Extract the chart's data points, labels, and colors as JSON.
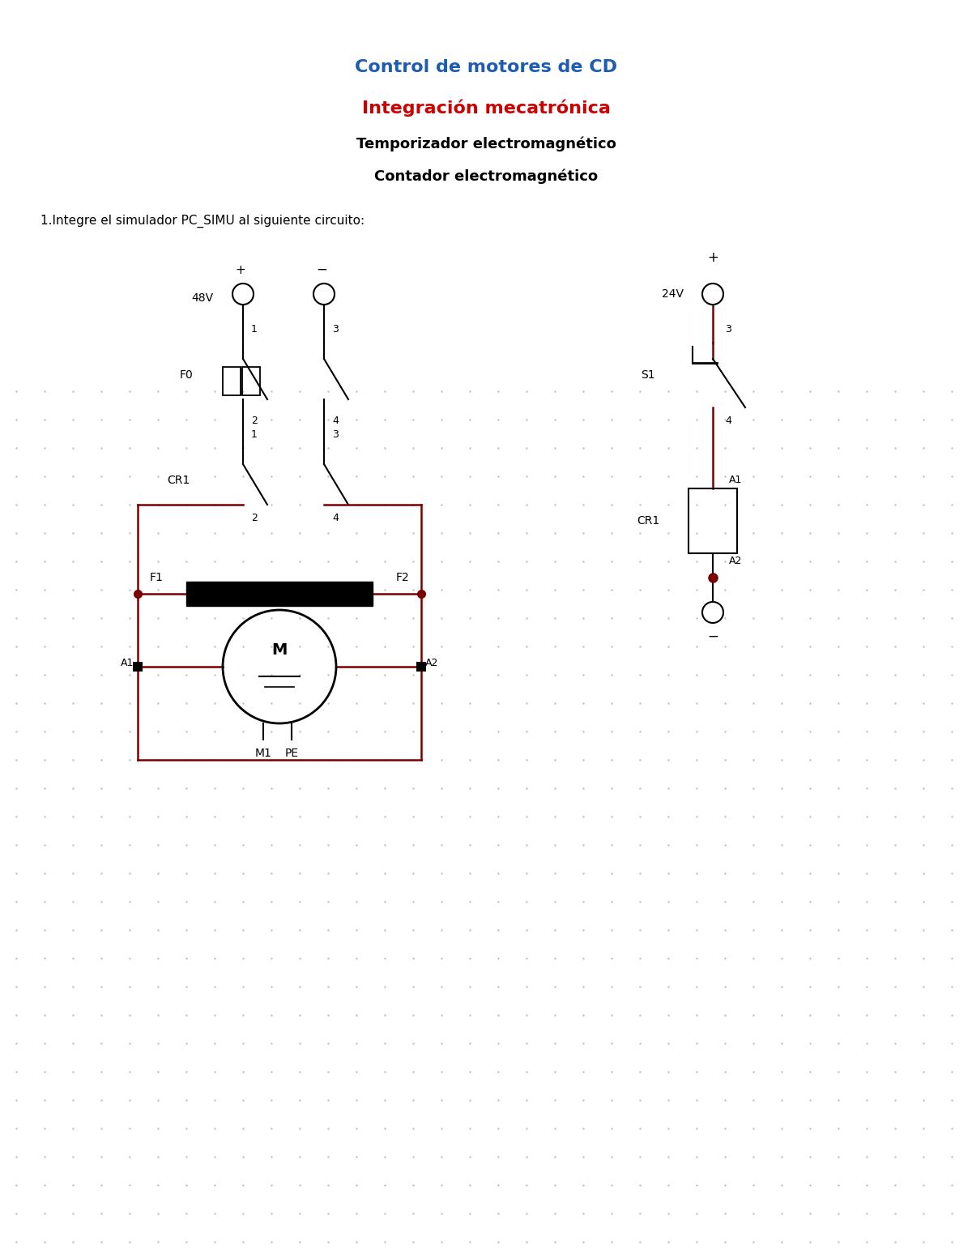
{
  "title1": "Control de motores de CD",
  "title1_color": "#1e5cb3",
  "title2": "Integración mecatrónica",
  "title2_color": "#cc0000",
  "title3": "Temporizador electromagnético",
  "title3_color": "#000000",
  "title4": "Contador electromagnético",
  "title4_color": "#000000",
  "subtitle": "1.Integre el simulador PC_SIMU al siguiente circuito:",
  "bg_color": "#ffffff",
  "lc": "#000000",
  "rc": "#7a0000",
  "dc": "#7a0000",
  "gc": "#c0c0c0",
  "figsize": [
    12.0,
    15.53
  ],
  "dpi": 100
}
